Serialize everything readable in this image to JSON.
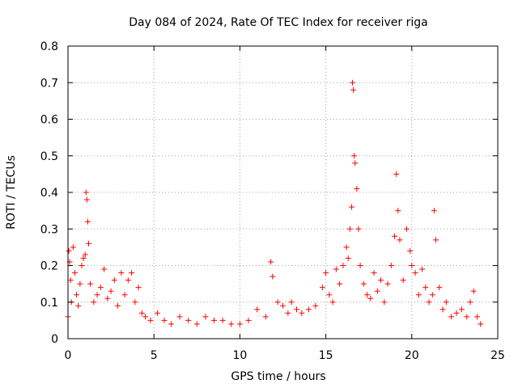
{
  "chart_data": {
    "type": "scatter",
    "title": "Day 084 of 2024, Rate Of TEC Index for receiver riga",
    "xlabel": "GPS time / hours",
    "ylabel": "ROTI / TECUs",
    "xlim": [
      0,
      25
    ],
    "ylim": [
      0,
      0.8
    ],
    "x_ticks": [
      0,
      5,
      10,
      15,
      20,
      25
    ],
    "x_tick_labels": [
      "0",
      "5",
      "10",
      "15",
      "20",
      "25"
    ],
    "y_ticks": [
      0,
      0.1,
      0.2,
      0.3,
      0.4,
      0.5,
      0.6,
      0.7,
      0.8
    ],
    "y_tick_labels": [
      "0",
      "0.1",
      "0.2",
      "0.3",
      "0.4",
      "0.5",
      "0.6",
      "0.7",
      "0.8"
    ],
    "grid": true,
    "marker": "+",
    "color": "#ff0000",
    "series": [
      {
        "name": "ROTI",
        "x": [
          0.0,
          0.05,
          0.1,
          0.15,
          0.2,
          0.3,
          0.4,
          0.5,
          0.6,
          0.7,
          0.8,
          0.9,
          1.0,
          1.05,
          1.1,
          1.15,
          1.2,
          1.3,
          1.5,
          1.7,
          1.9,
          2.1,
          2.3,
          2.5,
          2.7,
          2.9,
          3.1,
          3.3,
          3.5,
          3.7,
          3.9,
          4.1,
          4.3,
          4.5,
          4.8,
          5.2,
          5.6,
          6.0,
          6.5,
          7.0,
          7.5,
          8.0,
          8.5,
          9.0,
          9.5,
          10.0,
          10.5,
          11.0,
          11.5,
          11.8,
          11.9,
          12.2,
          12.5,
          12.8,
          13.0,
          13.3,
          13.6,
          14.0,
          14.4,
          14.8,
          15.0,
          15.2,
          15.4,
          15.6,
          15.8,
          16.0,
          16.2,
          16.3,
          16.4,
          16.5,
          16.55,
          16.6,
          16.65,
          16.7,
          16.8,
          16.9,
          17.0,
          17.2,
          17.4,
          17.6,
          17.8,
          18.0,
          18.2,
          18.4,
          18.6,
          18.8,
          19.0,
          19.1,
          19.2,
          19.3,
          19.5,
          19.7,
          19.9,
          20.0,
          20.2,
          20.4,
          20.6,
          20.8,
          21.0,
          21.2,
          21.3,
          21.4,
          21.6,
          21.8,
          22.0,
          22.3,
          22.6,
          22.9,
          23.2,
          23.4,
          23.6,
          23.8,
          24.0
        ],
        "values": [
          0.06,
          0.24,
          0.21,
          0.16,
          0.1,
          0.25,
          0.18,
          0.12,
          0.09,
          0.15,
          0.2,
          0.22,
          0.23,
          0.4,
          0.38,
          0.32,
          0.26,
          0.15,
          0.1,
          0.12,
          0.14,
          0.19,
          0.11,
          0.13,
          0.16,
          0.09,
          0.18,
          0.12,
          0.16,
          0.18,
          0.1,
          0.14,
          0.07,
          0.06,
          0.05,
          0.07,
          0.05,
          0.04,
          0.06,
          0.05,
          0.04,
          0.06,
          0.05,
          0.05,
          0.04,
          0.04,
          0.05,
          0.08,
          0.06,
          0.21,
          0.17,
          0.1,
          0.09,
          0.07,
          0.1,
          0.08,
          0.07,
          0.08,
          0.09,
          0.14,
          0.18,
          0.12,
          0.1,
          0.19,
          0.15,
          0.2,
          0.25,
          0.22,
          0.3,
          0.36,
          0.7,
          0.68,
          0.5,
          0.48,
          0.41,
          0.3,
          0.2,
          0.15,
          0.12,
          0.11,
          0.18,
          0.13,
          0.16,
          0.1,
          0.15,
          0.2,
          0.28,
          0.45,
          0.35,
          0.27,
          0.16,
          0.3,
          0.24,
          0.2,
          0.18,
          0.12,
          0.19,
          0.14,
          0.1,
          0.12,
          0.35,
          0.27,
          0.14,
          0.08,
          0.1,
          0.06,
          0.07,
          0.08,
          0.06,
          0.1,
          0.13,
          0.06,
          0.04
        ]
      }
    ]
  }
}
